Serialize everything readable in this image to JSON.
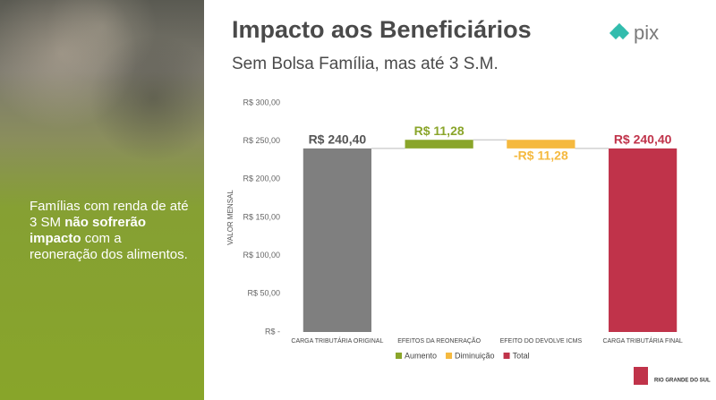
{
  "side_panel": {
    "text_before": "Famílias com renda de até 3 SM",
    "text_bold": "não sofrerão impacto",
    "text_after": "com a reoneração dos alimentos."
  },
  "logo": {
    "text": "pix"
  },
  "footer_logo": {
    "text": "RIO GRANDE DO SUL"
  },
  "chart_data": {
    "type": "waterfall",
    "title": "Impacto aos Beneficiários",
    "subtitle": "Sem Bolsa Família, mas até 3 S.M.",
    "y_label": "VALOR MENSAL",
    "categories": [
      "CARGA TRIBUTÁRIA ORIGINAL",
      "EFEITOS DA REONERAÇÃO",
      "EFEITO DO DEVOLVE ICMS",
      "CARGA TRIBUTÁRIA FINAL"
    ],
    "values": [
      240.4,
      11.28,
      -11.28,
      240.4
    ],
    "value_labels": [
      "R$ 240,40",
      "R$ 11,28",
      "-R$ 11,28",
      "R$ 240,40"
    ],
    "measures": [
      "total",
      "increase",
      "decrease",
      "total"
    ],
    "colors": [
      "#7f7f7f",
      "#8aa52a",
      "#f5b93f",
      "#c0334a"
    ],
    "legend": [
      {
        "name": "Aumento",
        "color": "#8aa52a"
      },
      {
        "name": "Diminuição",
        "color": "#f5b93f"
      },
      {
        "name": "Total",
        "color": "#c0334a"
      }
    ],
    "ylim": [
      0,
      300
    ],
    "yticks": [
      {
        "value": 0,
        "label": "R$ -"
      },
      {
        "value": 50,
        "label": "R$ 50,00"
      },
      {
        "value": 100,
        "label": "R$ 100,00"
      },
      {
        "value": 150,
        "label": "R$ 150,00"
      },
      {
        "value": 200,
        "label": "R$ 200,00"
      },
      {
        "value": 250,
        "label": "R$ 250,00"
      },
      {
        "value": 300,
        "label": "R$ 300,00"
      }
    ]
  }
}
